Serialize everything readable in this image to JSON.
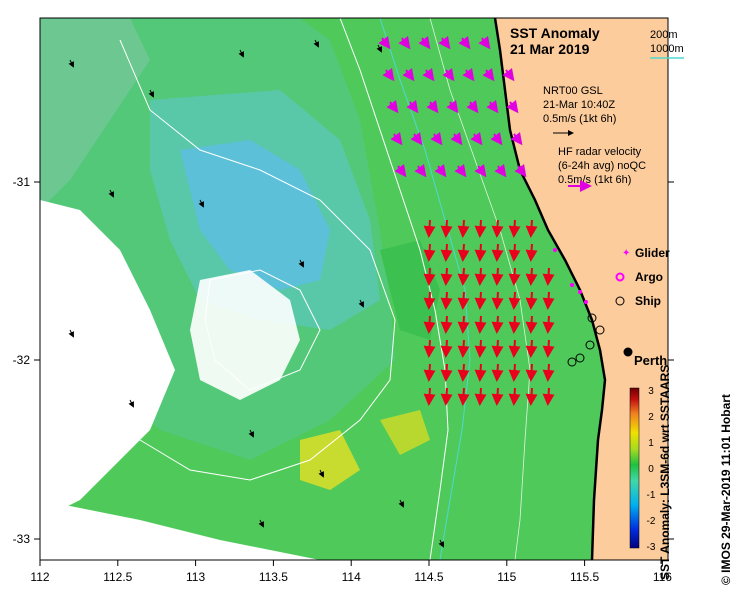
{
  "map": {
    "title": "SST Anomaly",
    "date": "21 Mar 2019",
    "place_label": "Perth",
    "credit": "© IMOS 29-Mar-2019 11:01 Hobart",
    "lon_ticks": [
      "112",
      "112.5",
      "113",
      "113.5",
      "114",
      "114.5",
      "115",
      "115.5",
      "116"
    ],
    "lat_ticks": [
      "-31",
      "-32",
      "-33"
    ]
  },
  "isobath_legend": {
    "items": [
      {
        "label": "200m",
        "color": "#ffffff"
      },
      {
        "label": "1000m",
        "color": "#4fd8d0"
      }
    ]
  },
  "velocity_legend": {
    "ship": {
      "line1": "NRT00 GSL",
      "line2": "21-Mar 10:40Z",
      "scale": "0.5m/s (1kt 6h)"
    },
    "radar": {
      "line1": "HF radar velocity",
      "line2": "(6-24h avg) noQC",
      "scale": "0.5m/s (1kt 6h)"
    }
  },
  "symbol_legend": {
    "glider": "Glider",
    "argo": "Argo",
    "ship": "Ship"
  },
  "colorbar": {
    "label": "SST Anomaly: L3SM-6d wrt SSTAARS",
    "ticks": [
      "3",
      "2",
      "1",
      "0",
      "-1",
      "-2",
      "-3"
    ],
    "colors": [
      "#000080",
      "#0030e0",
      "#00b0f0",
      "#40d8a8",
      "#20c040",
      "#a8dc20",
      "#f0e000",
      "#f08020",
      "#c01010",
      "#700000"
    ]
  },
  "colors": {
    "land": "#fccc9c",
    "radar_arrow": "#e8001c",
    "radar_arrow_north": "#e000e0",
    "glider": "#ff00ff",
    "anomaly_high": "#f0e000",
    "anomaly_mid": "#30c060",
    "anomaly_low": "#40c8f0"
  }
}
